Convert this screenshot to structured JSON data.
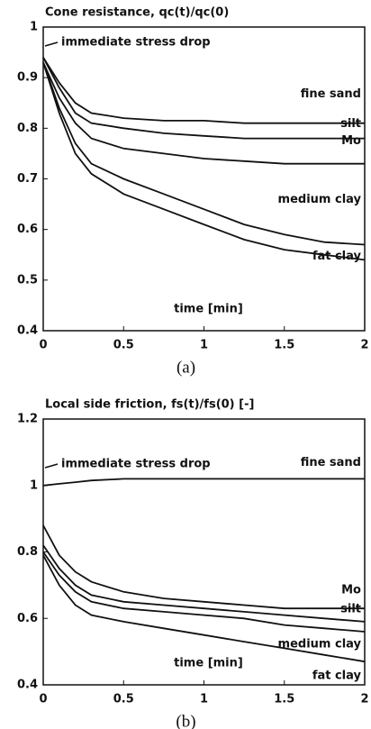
{
  "chart_data": [
    {
      "type": "line",
      "title": "Cone resistance, qc(t)/qc(0)",
      "x_label": "time [min]",
      "caption": "(a)",
      "annotation": "immediate stress drop",
      "x": [
        0,
        0.1,
        0.2,
        0.3,
        0.5,
        0.75,
        1,
        1.25,
        1.5,
        1.75,
        2
      ],
      "series": [
        {
          "name": "fine sand",
          "color": "#111111",
          "values": [
            0.94,
            0.89,
            0.85,
            0.83,
            0.82,
            0.815,
            0.815,
            0.81,
            0.81,
            0.81,
            0.81
          ]
        },
        {
          "name": "silt",
          "color": "#111111",
          "values": [
            0.94,
            0.88,
            0.83,
            0.81,
            0.8,
            0.79,
            0.785,
            0.78,
            0.78,
            0.78,
            0.78
          ]
        },
        {
          "name": "Mo",
          "color": "#111111",
          "values": [
            0.93,
            0.86,
            0.81,
            0.78,
            0.76,
            0.75,
            0.74,
            0.735,
            0.73,
            0.73,
            0.73
          ]
        },
        {
          "name": "medium clay",
          "color": "#111111",
          "values": [
            0.93,
            0.84,
            0.77,
            0.73,
            0.7,
            0.67,
            0.64,
            0.61,
            0.59,
            0.575,
            0.57
          ]
        },
        {
          "name": "fat clay",
          "color": "#111111",
          "values": [
            0.93,
            0.83,
            0.75,
            0.71,
            0.67,
            0.64,
            0.61,
            0.58,
            0.56,
            0.55,
            0.54
          ]
        }
      ],
      "xlim": [
        0,
        2
      ],
      "xticks": [
        0,
        0.5,
        1,
        1.5,
        2
      ],
      "ylim": [
        0.4,
        1
      ],
      "yticks": [
        0.4,
        0.5,
        0.6,
        0.7,
        0.8,
        0.9,
        1
      ]
    },
    {
      "type": "line",
      "title": "Local side friction, fs(t)/fs(0) [-]",
      "x_label": "time [min]",
      "caption": "(b)",
      "annotation": "immediate stress drop",
      "x": [
        0,
        0.1,
        0.2,
        0.3,
        0.5,
        0.75,
        1,
        1.25,
        1.5,
        1.75,
        2
      ],
      "series": [
        {
          "name": "fine sand",
          "color": "#111111",
          "values": [
            1.0,
            1.005,
            1.01,
            1.015,
            1.02,
            1.02,
            1.02,
            1.02,
            1.02,
            1.02,
            1.02
          ]
        },
        {
          "name": "Mo",
          "color": "#111111",
          "values": [
            0.88,
            0.79,
            0.74,
            0.71,
            0.68,
            0.66,
            0.65,
            0.64,
            0.63,
            0.63,
            0.63
          ]
        },
        {
          "name": "silt",
          "color": "#111111",
          "values": [
            0.82,
            0.75,
            0.7,
            0.67,
            0.65,
            0.64,
            0.63,
            0.62,
            0.61,
            0.6,
            0.59
          ]
        },
        {
          "name": "medium clay",
          "color": "#111111",
          "values": [
            0.8,
            0.73,
            0.68,
            0.65,
            0.63,
            0.62,
            0.61,
            0.6,
            0.58,
            0.57,
            0.56
          ]
        },
        {
          "name": "fat clay",
          "color": "#111111",
          "values": [
            0.79,
            0.7,
            0.64,
            0.61,
            0.59,
            0.57,
            0.55,
            0.53,
            0.51,
            0.49,
            0.47
          ]
        }
      ],
      "xlim": [
        0,
        2
      ],
      "xticks": [
        0,
        0.5,
        1,
        1.5,
        2
      ],
      "ylim": [
        0.4,
        1.2
      ],
      "yticks": [
        0.4,
        0.6,
        0.8,
        1,
        1.2
      ]
    }
  ]
}
